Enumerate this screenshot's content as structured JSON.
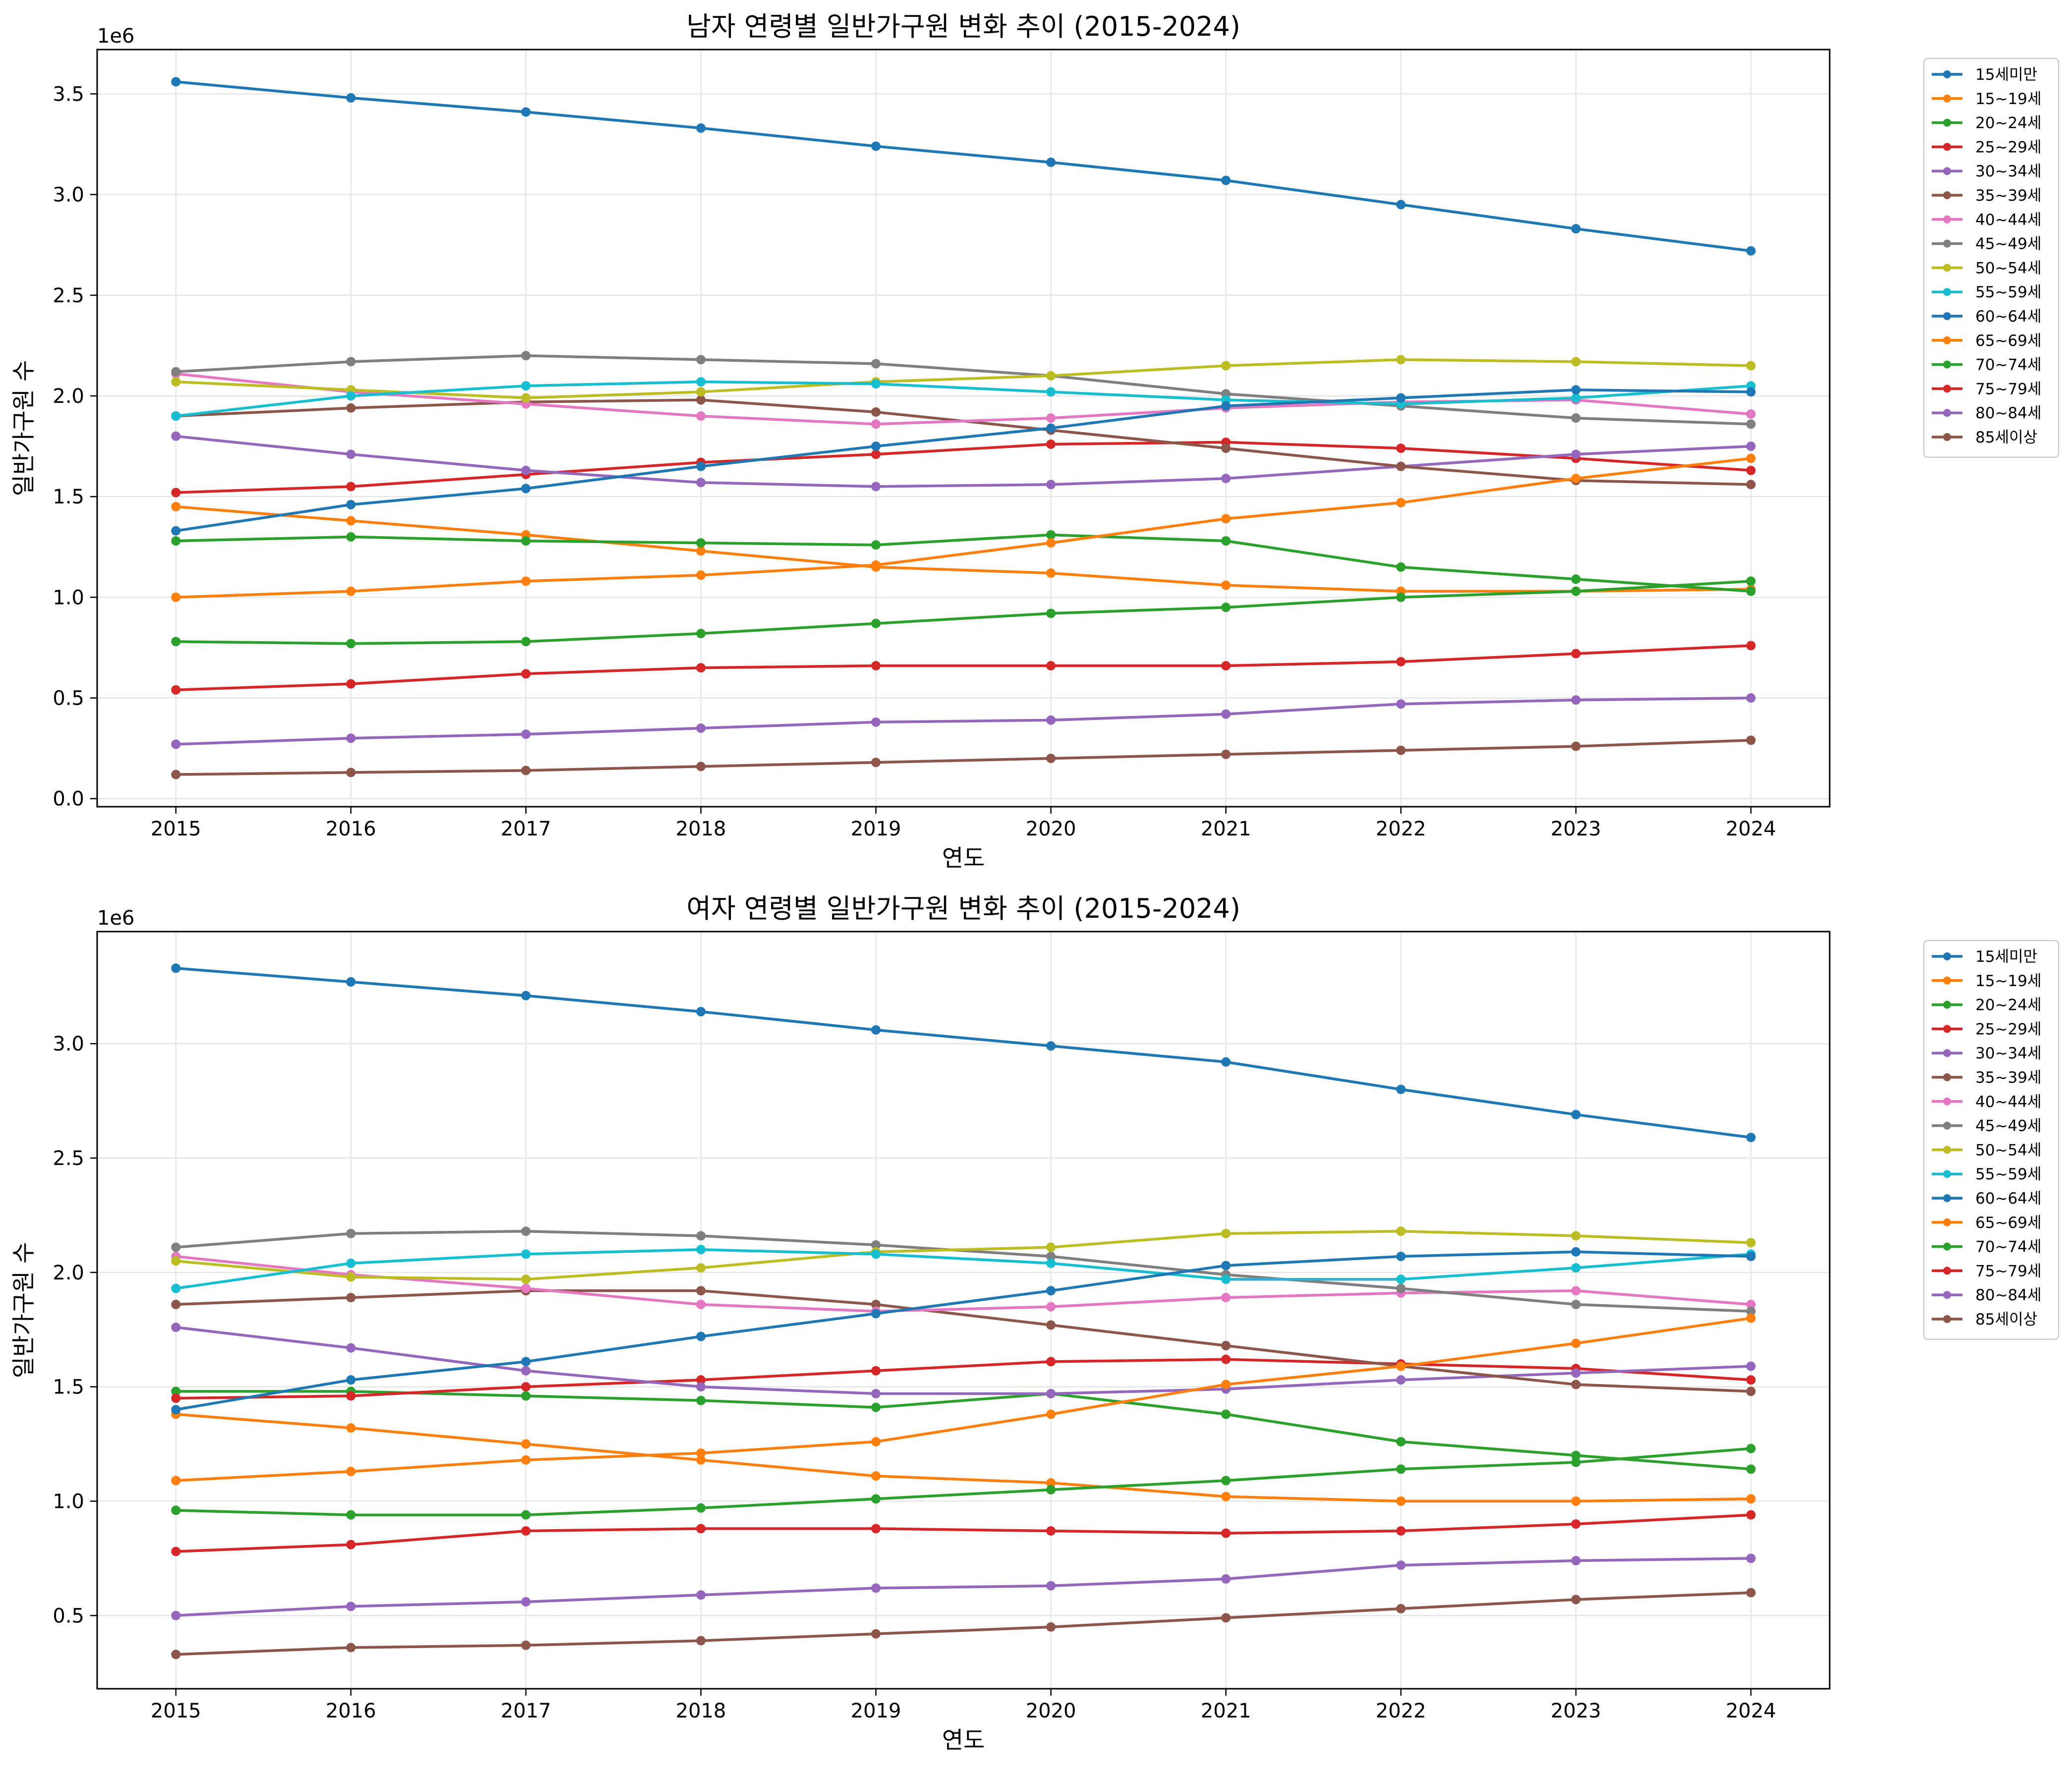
{
  "colors": [
    "#1f77b4",
    "#ff7f0e",
    "#2ca02c",
    "#d62728",
    "#9467bd",
    "#8c564b",
    "#e377c2",
    "#7f7f7f",
    "#bcbd22",
    "#17becf",
    "#1f77b4",
    "#ff7f0e",
    "#2ca02c",
    "#d62728",
    "#9467bd",
    "#8c564b"
  ],
  "chart_data": [
    {
      "type": "line",
      "title": "남자 연령별 일반가구원 변화 추이 (2015-2024)",
      "xlabel": "연도",
      "ylabel": "일반가구원 수",
      "offset_text": "1e6",
      "grid": true,
      "legend_position": "outside-right",
      "x": [
        2015,
        2016,
        2017,
        2018,
        2019,
        2020,
        2021,
        2022,
        2023,
        2024
      ],
      "x_ticks": [
        "2015",
        "2016",
        "2017",
        "2018",
        "2019",
        "2020",
        "2021",
        "2022",
        "2023",
        "2024"
      ],
      "xlim": [
        2014.55,
        2024.45
      ],
      "ylim": [
        -0.04,
        3.72
      ],
      "y_ticks": [
        "0.0",
        "0.5",
        "1.0",
        "1.5",
        "2.0",
        "2.5",
        "3.0",
        "3.5"
      ],
      "y_unit": 1000000,
      "series": [
        {
          "name": "15세미만",
          "values": [
            3.56,
            3.48,
            3.41,
            3.33,
            3.24,
            3.16,
            3.07,
            2.95,
            2.83,
            2.72
          ]
        },
        {
          "name": "15~19세",
          "values": [
            1.45,
            1.38,
            1.31,
            1.23,
            1.15,
            1.12,
            1.06,
            1.03,
            1.03,
            1.04
          ]
        },
        {
          "name": "20~24세",
          "values": [
            1.28,
            1.3,
            1.28,
            1.27,
            1.26,
            1.31,
            1.28,
            1.15,
            1.09,
            1.03
          ]
        },
        {
          "name": "25~29세",
          "values": [
            1.52,
            1.55,
            1.61,
            1.67,
            1.71,
            1.76,
            1.77,
            1.74,
            1.69,
            1.63
          ]
        },
        {
          "name": "30~34세",
          "values": [
            1.8,
            1.71,
            1.63,
            1.57,
            1.55,
            1.56,
            1.59,
            1.65,
            1.71,
            1.75
          ]
        },
        {
          "name": "35~39세",
          "values": [
            1.9,
            1.94,
            1.97,
            1.98,
            1.92,
            1.83,
            1.74,
            1.65,
            1.58,
            1.56
          ]
        },
        {
          "name": "40~44세",
          "values": [
            2.11,
            2.02,
            1.96,
            1.9,
            1.86,
            1.89,
            1.94,
            1.97,
            1.98,
            1.91
          ]
        },
        {
          "name": "45~49세",
          "values": [
            2.12,
            2.17,
            2.2,
            2.18,
            2.16,
            2.1,
            2.01,
            1.95,
            1.89,
            1.86
          ]
        },
        {
          "name": "50~54세",
          "values": [
            2.07,
            2.03,
            1.99,
            2.02,
            2.07,
            2.1,
            2.15,
            2.18,
            2.17,
            2.15
          ]
        },
        {
          "name": "55~59세",
          "values": [
            1.9,
            2.0,
            2.05,
            2.07,
            2.06,
            2.02,
            1.98,
            1.96,
            1.99,
            2.05
          ]
        },
        {
          "name": "60~64세",
          "values": [
            1.33,
            1.46,
            1.54,
            1.65,
            1.75,
            1.84,
            1.95,
            1.99,
            2.03,
            2.02
          ]
        },
        {
          "name": "65~69세",
          "values": [
            1.0,
            1.03,
            1.08,
            1.11,
            1.16,
            1.27,
            1.39,
            1.47,
            1.59,
            1.69
          ]
        },
        {
          "name": "70~74세",
          "values": [
            0.78,
            0.77,
            0.78,
            0.82,
            0.87,
            0.92,
            0.95,
            1.0,
            1.03,
            1.08
          ]
        },
        {
          "name": "75~79세",
          "values": [
            0.54,
            0.57,
            0.62,
            0.65,
            0.66,
            0.66,
            0.66,
            0.68,
            0.72,
            0.76
          ]
        },
        {
          "name": "80~84세",
          "values": [
            0.27,
            0.3,
            0.32,
            0.35,
            0.38,
            0.39,
            0.42,
            0.47,
            0.49,
            0.5
          ]
        },
        {
          "name": "85세이상",
          "values": [
            0.12,
            0.13,
            0.14,
            0.16,
            0.18,
            0.2,
            0.22,
            0.24,
            0.26,
            0.29
          ]
        }
      ]
    },
    {
      "type": "line",
      "title": "여자 연령별 일반가구원 변화 추이 (2015-2024)",
      "xlabel": "연도",
      "ylabel": "일반가구원 수",
      "offset_text": "1e6",
      "grid": true,
      "legend_position": "outside-right",
      "x": [
        2015,
        2016,
        2017,
        2018,
        2019,
        2020,
        2021,
        2022,
        2023,
        2024
      ],
      "x_ticks": [
        "2015",
        "2016",
        "2017",
        "2018",
        "2019",
        "2020",
        "2021",
        "2022",
        "2023",
        "2024"
      ],
      "xlim": [
        2014.55,
        2024.45
      ],
      "ylim": [
        0.18,
        3.49
      ],
      "y_ticks": [
        "0.5",
        "1.0",
        "1.5",
        "2.0",
        "2.5",
        "3.0"
      ],
      "y_unit": 1000000,
      "series": [
        {
          "name": "15세미만",
          "values": [
            3.33,
            3.27,
            3.21,
            3.14,
            3.06,
            2.99,
            2.92,
            2.8,
            2.69,
            2.59
          ]
        },
        {
          "name": "15~19세",
          "values": [
            1.38,
            1.32,
            1.25,
            1.18,
            1.11,
            1.08,
            1.02,
            1.0,
            1.0,
            1.01
          ]
        },
        {
          "name": "20~24세",
          "values": [
            1.48,
            1.48,
            1.46,
            1.44,
            1.41,
            1.47,
            1.38,
            1.26,
            1.2,
            1.14
          ]
        },
        {
          "name": "25~29세",
          "values": [
            1.45,
            1.46,
            1.5,
            1.53,
            1.57,
            1.61,
            1.62,
            1.6,
            1.58,
            1.53
          ]
        },
        {
          "name": "30~34세",
          "values": [
            1.76,
            1.67,
            1.57,
            1.5,
            1.47,
            1.47,
            1.49,
            1.53,
            1.56,
            1.59
          ]
        },
        {
          "name": "35~39세",
          "values": [
            1.86,
            1.89,
            1.92,
            1.92,
            1.86,
            1.77,
            1.68,
            1.59,
            1.51,
            1.48
          ]
        },
        {
          "name": "40~44세",
          "values": [
            2.07,
            1.99,
            1.93,
            1.86,
            1.83,
            1.85,
            1.89,
            1.91,
            1.92,
            1.86
          ]
        },
        {
          "name": "45~49세",
          "values": [
            2.11,
            2.17,
            2.18,
            2.16,
            2.12,
            2.07,
            1.99,
            1.93,
            1.86,
            1.83
          ]
        },
        {
          "name": "50~54세",
          "values": [
            2.05,
            1.98,
            1.97,
            2.02,
            2.09,
            2.11,
            2.17,
            2.18,
            2.16,
            2.13
          ]
        },
        {
          "name": "55~59세",
          "values": [
            1.93,
            2.04,
            2.08,
            2.1,
            2.08,
            2.04,
            1.97,
            1.97,
            2.02,
            2.08
          ]
        },
        {
          "name": "60~64세",
          "values": [
            1.4,
            1.53,
            1.61,
            1.72,
            1.82,
            1.92,
            2.03,
            2.07,
            2.09,
            2.07
          ]
        },
        {
          "name": "65~69세",
          "values": [
            1.09,
            1.13,
            1.18,
            1.21,
            1.26,
            1.38,
            1.51,
            1.59,
            1.69,
            1.8
          ]
        },
        {
          "name": "70~74세",
          "values": [
            0.96,
            0.94,
            0.94,
            0.97,
            1.01,
            1.05,
            1.09,
            1.14,
            1.17,
            1.23
          ]
        },
        {
          "name": "75~79세",
          "values": [
            0.78,
            0.81,
            0.87,
            0.88,
            0.88,
            0.87,
            0.86,
            0.87,
            0.9,
            0.94
          ]
        },
        {
          "name": "80~84세",
          "values": [
            0.5,
            0.54,
            0.56,
            0.59,
            0.62,
            0.63,
            0.66,
            0.72,
            0.74,
            0.75
          ]
        },
        {
          "name": "85세이상",
          "values": [
            0.33,
            0.36,
            0.37,
            0.39,
            0.42,
            0.45,
            0.49,
            0.53,
            0.57,
            0.6
          ]
        }
      ]
    }
  ]
}
